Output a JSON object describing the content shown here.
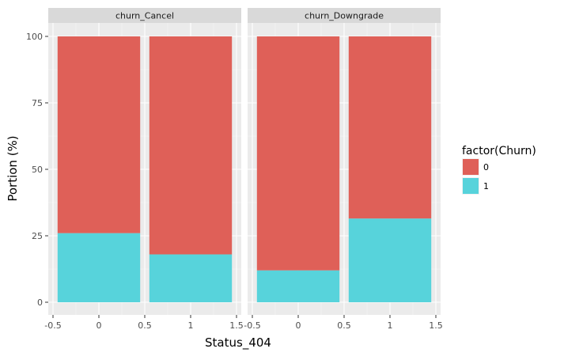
{
  "chart_data": {
    "type": "bar",
    "stacked": true,
    "facet_variable": "churn",
    "xlabel": "Status_404",
    "ylabel": "Portion (%)",
    "ylim": [
      0,
      100
    ],
    "xlim": [
      -0.5,
      1.5
    ],
    "x_ticks": [
      "-0.5",
      "0",
      "0.5",
      "1",
      "1.5"
    ],
    "y_ticks": [
      "0",
      "25",
      "50",
      "75",
      "100"
    ],
    "legend": {
      "title": "factor(Churn)",
      "placement": "right",
      "entries": [
        {
          "label": "0",
          "color": "#DF6058"
        },
        {
          "label": "1",
          "color": "#57D3DB"
        }
      ]
    },
    "grid": true,
    "panels": [
      {
        "title": "churn_Cancel",
        "categories": [
          0,
          1
        ],
        "series": [
          {
            "name": "1",
            "color": "#57D3DB",
            "values": [
              26,
              18
            ]
          },
          {
            "name": "0",
            "color": "#DF6058",
            "values": [
              74,
              82
            ]
          }
        ]
      },
      {
        "title": "churn_Downgrade",
        "categories": [
          0,
          1
        ],
        "series": [
          {
            "name": "1",
            "color": "#57D3DB",
            "values": [
              12,
              31.5
            ]
          },
          {
            "name": "0",
            "color": "#DF6058",
            "values": [
              88,
              68.5
            ]
          }
        ]
      }
    ]
  }
}
